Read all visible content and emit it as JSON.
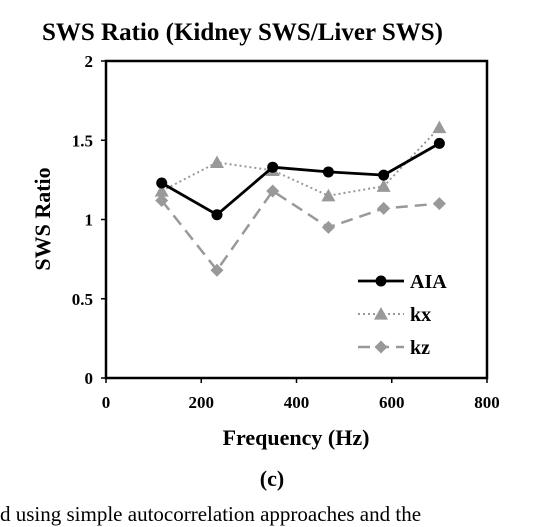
{
  "chart_data": {
    "type": "line",
    "title": "SWS Ratio (Kidney SWS/Liver SWS)",
    "xlabel": "Frequency (Hz)",
    "ylabel": "SWS Ratio",
    "xlim": [
      0,
      800
    ],
    "ylim": [
      0,
      2
    ],
    "xticks": [
      "0",
      "200",
      "400",
      "600",
      "800"
    ],
    "yticks": [
      "0",
      "0.5",
      "1",
      "1.5",
      "2"
    ],
    "x": [
      117,
      233,
      350,
      467,
      583,
      700
    ],
    "series": [
      {
        "name": "AIA",
        "values": [
          1.23,
          1.03,
          1.33,
          1.3,
          1.28,
          1.48
        ],
        "color": "#000000",
        "marker": "circle",
        "line": "solid"
      },
      {
        "name": "kx",
        "values": [
          1.18,
          1.36,
          1.31,
          1.15,
          1.21,
          1.58
        ],
        "color": "#999999",
        "marker": "triangle",
        "line": "dotted"
      },
      {
        "name": "kz",
        "values": [
          1.12,
          0.68,
          1.18,
          0.95,
          1.07,
          1.1
        ],
        "color": "#999999",
        "marker": "diamond",
        "line": "dashed"
      }
    ],
    "grid": false,
    "legend": "bottom-right"
  },
  "caption": "(c)",
  "bottom_text": "d using simple autocorrelation approaches and the"
}
